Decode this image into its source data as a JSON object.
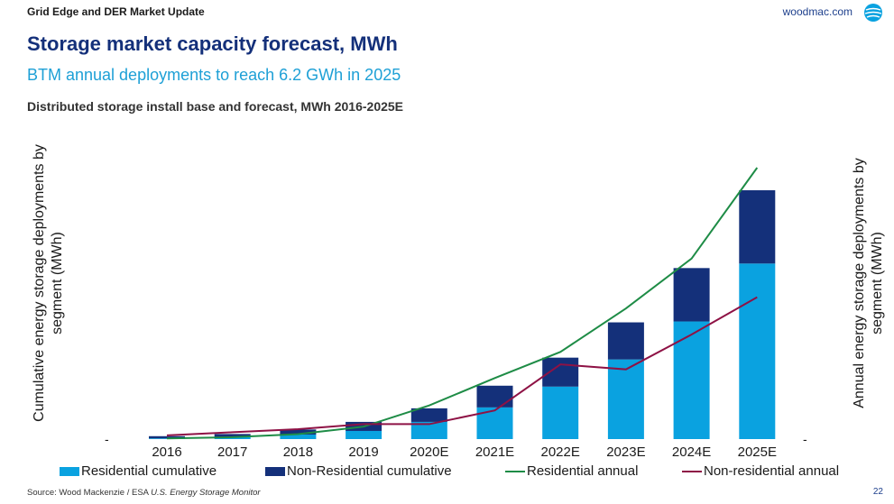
{
  "header": {
    "left": "Grid Edge and DER Market Update",
    "right": "woodmac.com",
    "logo_icon": "woodmac-globe-logo"
  },
  "title": "Storage market capacity forecast, MWh",
  "subtitle": "BTM annual deployments to reach 6.2 GWh in 2025",
  "chart_data": {
    "type": "bar",
    "title": "Distributed storage install base and forecast, MWh 2016-2025E",
    "categories": [
      "2016",
      "2017",
      "2018",
      "2019",
      "2020E",
      "2021E",
      "2022E",
      "2023E",
      "2024E",
      "2025E"
    ],
    "ylabel_left_line1": "Cumulative energy storage deployments by",
    "ylabel_left_line2": "segment (MWh)",
    "ylabel_right_line1": "Annual energy storage deployments by",
    "ylabel_right_line2": "segment (MWh)",
    "left_tick_label": "-",
    "right_tick_label": "-",
    "stacked": true,
    "series": [
      {
        "name": "Residential cumulative",
        "type": "bar",
        "color": "#0aa2e0",
        "values": [
          0.4,
          1.2,
          2.5,
          4.5,
          9.5,
          17.5,
          29.0,
          44.0,
          65.0,
          97.0
        ]
      },
      {
        "name": "Non-Residential cumulative",
        "type": "bar",
        "color": "#14307a",
        "values": [
          1.2,
          1.6,
          2.8,
          5.0,
          7.5,
          12.0,
          16.0,
          20.5,
          29.5,
          40.5
        ]
      },
      {
        "name": "Residential annual",
        "type": "line",
        "color": "#1e8c46",
        "values": [
          0.5,
          1.5,
          4.0,
          10.0,
          27.0,
          49.0,
          70.0,
          105.0,
          145.0,
          218.0
        ]
      },
      {
        "name": "Non-residential annual",
        "type": "line",
        "color": "#8e1245",
        "values": [
          3.0,
          5.5,
          8.0,
          12.0,
          12.0,
          23.0,
          60.0,
          56.0,
          84.0,
          114.0
        ]
      }
    ]
  },
  "source": {
    "text": "Source: Wood Mackenzie / ESA ",
    "italic": "U.S. Energy Storage Monitor"
  },
  "page_number": "22"
}
